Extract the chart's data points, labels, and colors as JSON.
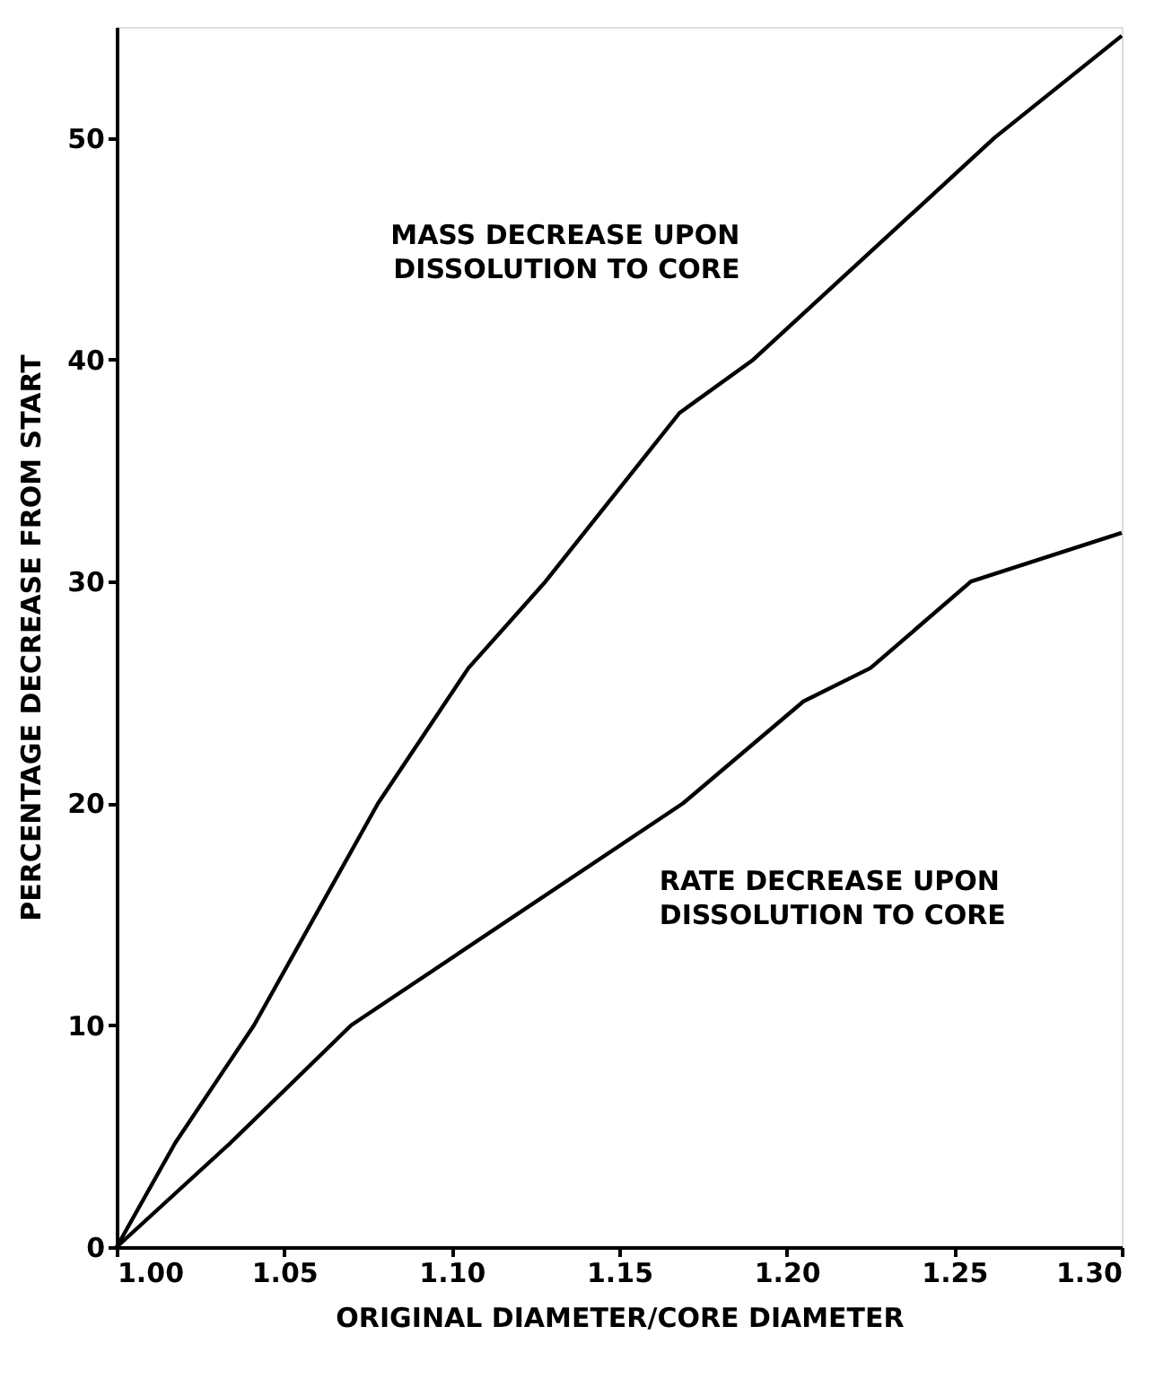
{
  "chart_data": {
    "type": "line",
    "xlabel": "ORIGINAL DIAMETER/CORE DIAMETER",
    "ylabel": "PERCENTAGE DECREASE FROM START",
    "xlim": [
      1.0,
      1.3
    ],
    "xticks": [
      {
        "value": 1.0,
        "label": "1.00"
      },
      {
        "value": 1.05,
        "label": "1.05"
      },
      {
        "value": 1.1,
        "label": "1.10"
      },
      {
        "value": 1.15,
        "label": "1.15"
      },
      {
        "value": 1.2,
        "label": "1.20"
      },
      {
        "value": 1.25,
        "label": "1.25"
      },
      {
        "value": 1.3,
        "label": "1.30"
      }
    ],
    "ylim": [
      0,
      55
    ],
    "yticks": [
      0,
      10,
      20,
      30,
      40,
      50
    ],
    "grid": false,
    "marker": "none",
    "line_style": "solid",
    "series": [
      {
        "name": "MASS DECREASE UPON\nDISSOLUTION TO CORE",
        "color": "#000000",
        "x": [
          1.0,
          1.0175,
          1.041,
          1.078,
          1.105,
          1.128,
          1.168,
          1.19,
          1.262,
          1.3
        ],
        "values": [
          0,
          4.7,
          10,
          20,
          26.1,
          30,
          37.6,
          40,
          50,
          54.6
        ]
      },
      {
        "name": "RATE DECREASE UPON\nDISSOLUTION TO CORE",
        "color": "#000000",
        "x": [
          1.0,
          1.034,
          1.07,
          1.169,
          1.205,
          1.225,
          1.255,
          1.3
        ],
        "values": [
          0,
          4.7,
          10,
          20,
          24.6,
          26.1,
          30,
          32.2
        ]
      }
    ]
  }
}
